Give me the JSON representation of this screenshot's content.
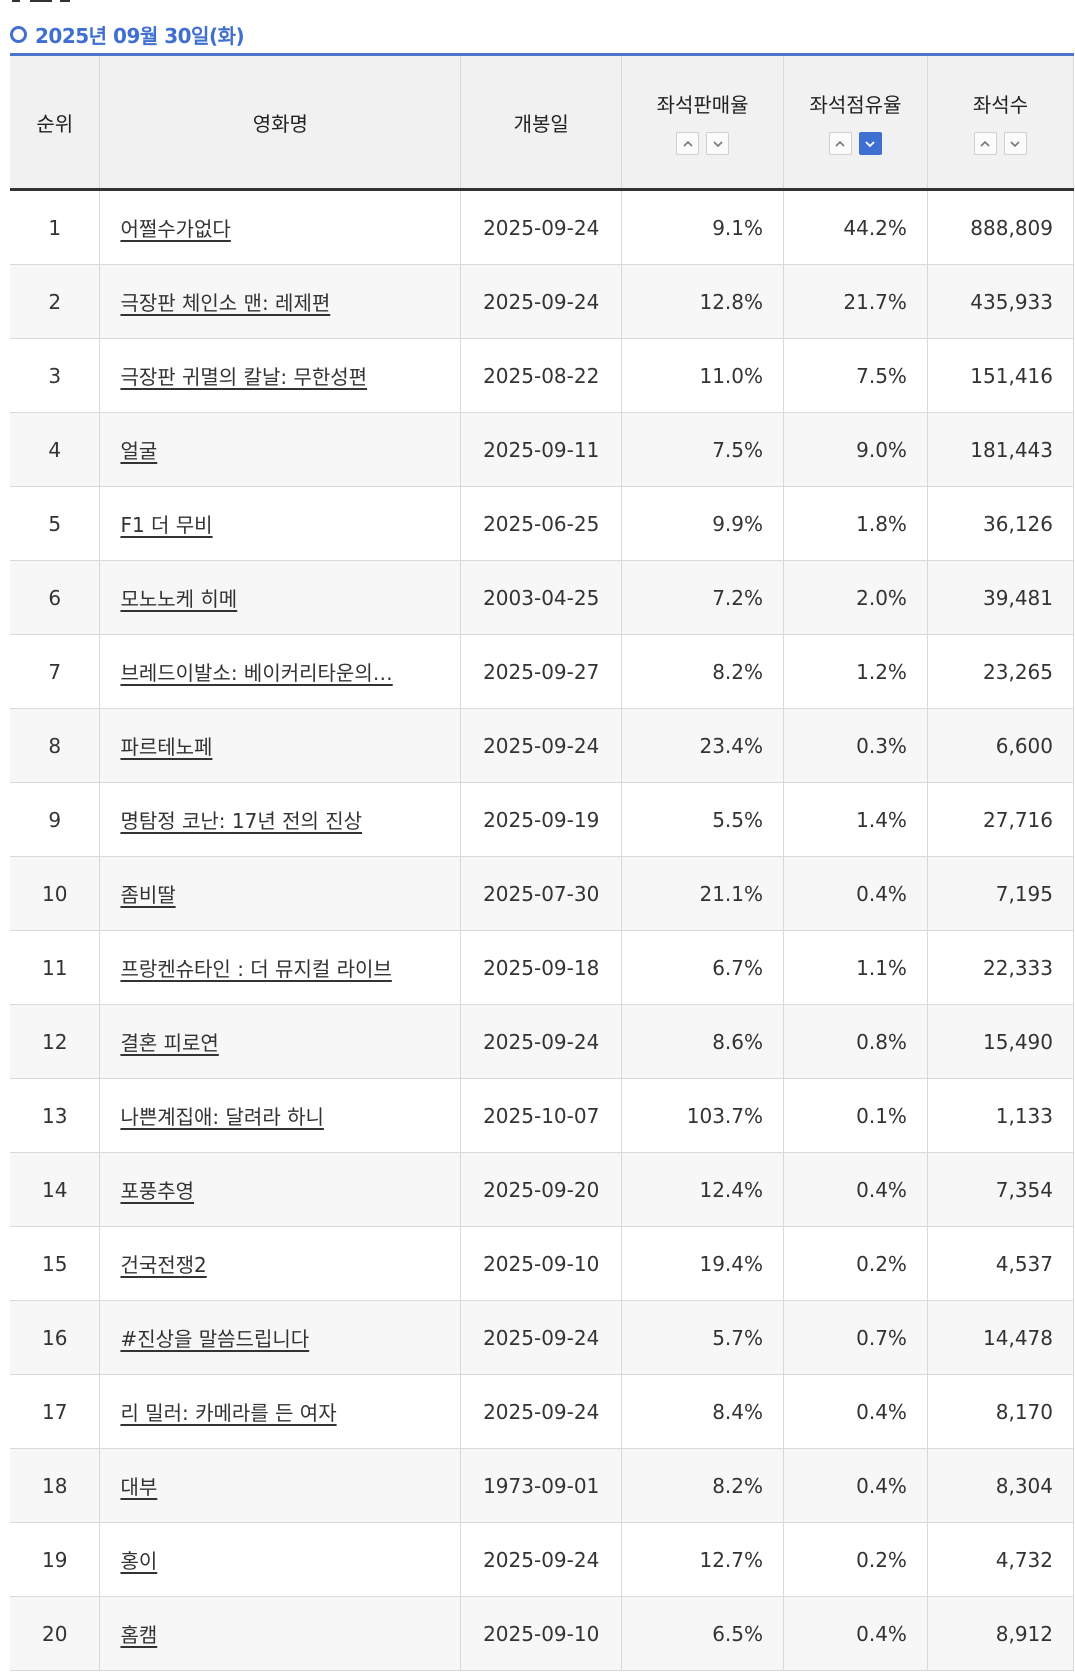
{
  "heading": {
    "date_text": "2025년 09월 30일(화)",
    "icon": "ring-bullet-icon",
    "accent_color": "#3f6fd1"
  },
  "table": {
    "headers": {
      "rank": "순위",
      "title": "영화명",
      "release": "개봉일",
      "sales_rate": "좌석판매율",
      "share_rate": "좌석점유율",
      "seats": "좌석수"
    },
    "sort": {
      "active_column": "share_rate",
      "active_direction": "desc"
    },
    "rows": [
      {
        "rank": "1",
        "title": "어쩔수가없다",
        "release": "2025-09-24",
        "sales_rate": "9.1%",
        "share_rate": "44.2%",
        "seats": "888,809"
      },
      {
        "rank": "2",
        "title": "극장판 체인소 맨: 레제편",
        "release": "2025-09-24",
        "sales_rate": "12.8%",
        "share_rate": "21.7%",
        "seats": "435,933"
      },
      {
        "rank": "3",
        "title": "극장판 귀멸의 칼날: 무한성편",
        "release": "2025-08-22",
        "sales_rate": "11.0%",
        "share_rate": "7.5%",
        "seats": "151,416"
      },
      {
        "rank": "4",
        "title": "얼굴",
        "release": "2025-09-11",
        "sales_rate": "7.5%",
        "share_rate": "9.0%",
        "seats": "181,443"
      },
      {
        "rank": "5",
        "title": "F1 더 무비",
        "release": "2025-06-25",
        "sales_rate": "9.9%",
        "share_rate": "1.8%",
        "seats": "36,126"
      },
      {
        "rank": "6",
        "title": "모노노케 히메",
        "release": "2003-04-25",
        "sales_rate": "7.2%",
        "share_rate": "2.0%",
        "seats": "39,481"
      },
      {
        "rank": "7",
        "title": "브레드이발소: 베이커리타운의…",
        "release": "2025-09-27",
        "sales_rate": "8.2%",
        "share_rate": "1.2%",
        "seats": "23,265"
      },
      {
        "rank": "8",
        "title": "파르테노페",
        "release": "2025-09-24",
        "sales_rate": "23.4%",
        "share_rate": "0.3%",
        "seats": "6,600"
      },
      {
        "rank": "9",
        "title": "명탐정 코난: 17년 전의 진상",
        "release": "2025-09-19",
        "sales_rate": "5.5%",
        "share_rate": "1.4%",
        "seats": "27,716"
      },
      {
        "rank": "10",
        "title": "좀비딸",
        "release": "2025-07-30",
        "sales_rate": "21.1%",
        "share_rate": "0.4%",
        "seats": "7,195"
      },
      {
        "rank": "11",
        "title": "프랑켄슈타인 : 더 뮤지컬 라이브",
        "release": "2025-09-18",
        "sales_rate": "6.7%",
        "share_rate": "1.1%",
        "seats": "22,333"
      },
      {
        "rank": "12",
        "title": "결혼 피로연",
        "release": "2025-09-24",
        "sales_rate": "8.6%",
        "share_rate": "0.8%",
        "seats": "15,490"
      },
      {
        "rank": "13",
        "title": "나쁜계집애: 달려라 하니",
        "release": "2025-10-07",
        "sales_rate": "103.7%",
        "share_rate": "0.1%",
        "seats": "1,133"
      },
      {
        "rank": "14",
        "title": "포풍추영",
        "release": "2025-09-20",
        "sales_rate": "12.4%",
        "share_rate": "0.4%",
        "seats": "7,354"
      },
      {
        "rank": "15",
        "title": "건국전쟁2",
        "release": "2025-09-10",
        "sales_rate": "19.4%",
        "share_rate": "0.2%",
        "seats": "4,537"
      },
      {
        "rank": "16",
        "title": "#진상을 말씀드립니다",
        "release": "2025-09-24",
        "sales_rate": "5.7%",
        "share_rate": "0.7%",
        "seats": "14,478"
      },
      {
        "rank": "17",
        "title": "리 밀러: 카메라를 든 여자",
        "release": "2025-09-24",
        "sales_rate": "8.4%",
        "share_rate": "0.4%",
        "seats": "8,170"
      },
      {
        "rank": "18",
        "title": "대부",
        "release": "1973-09-01",
        "sales_rate": "8.2%",
        "share_rate": "0.4%",
        "seats": "8,304"
      },
      {
        "rank": "19",
        "title": "홍이",
        "release": "2025-09-24",
        "sales_rate": "12.7%",
        "share_rate": "0.2%",
        "seats": "4,732"
      },
      {
        "rank": "20",
        "title": "홈캠",
        "release": "2025-09-10",
        "sales_rate": "6.5%",
        "share_rate": "0.4%",
        "seats": "8,912"
      }
    ]
  }
}
